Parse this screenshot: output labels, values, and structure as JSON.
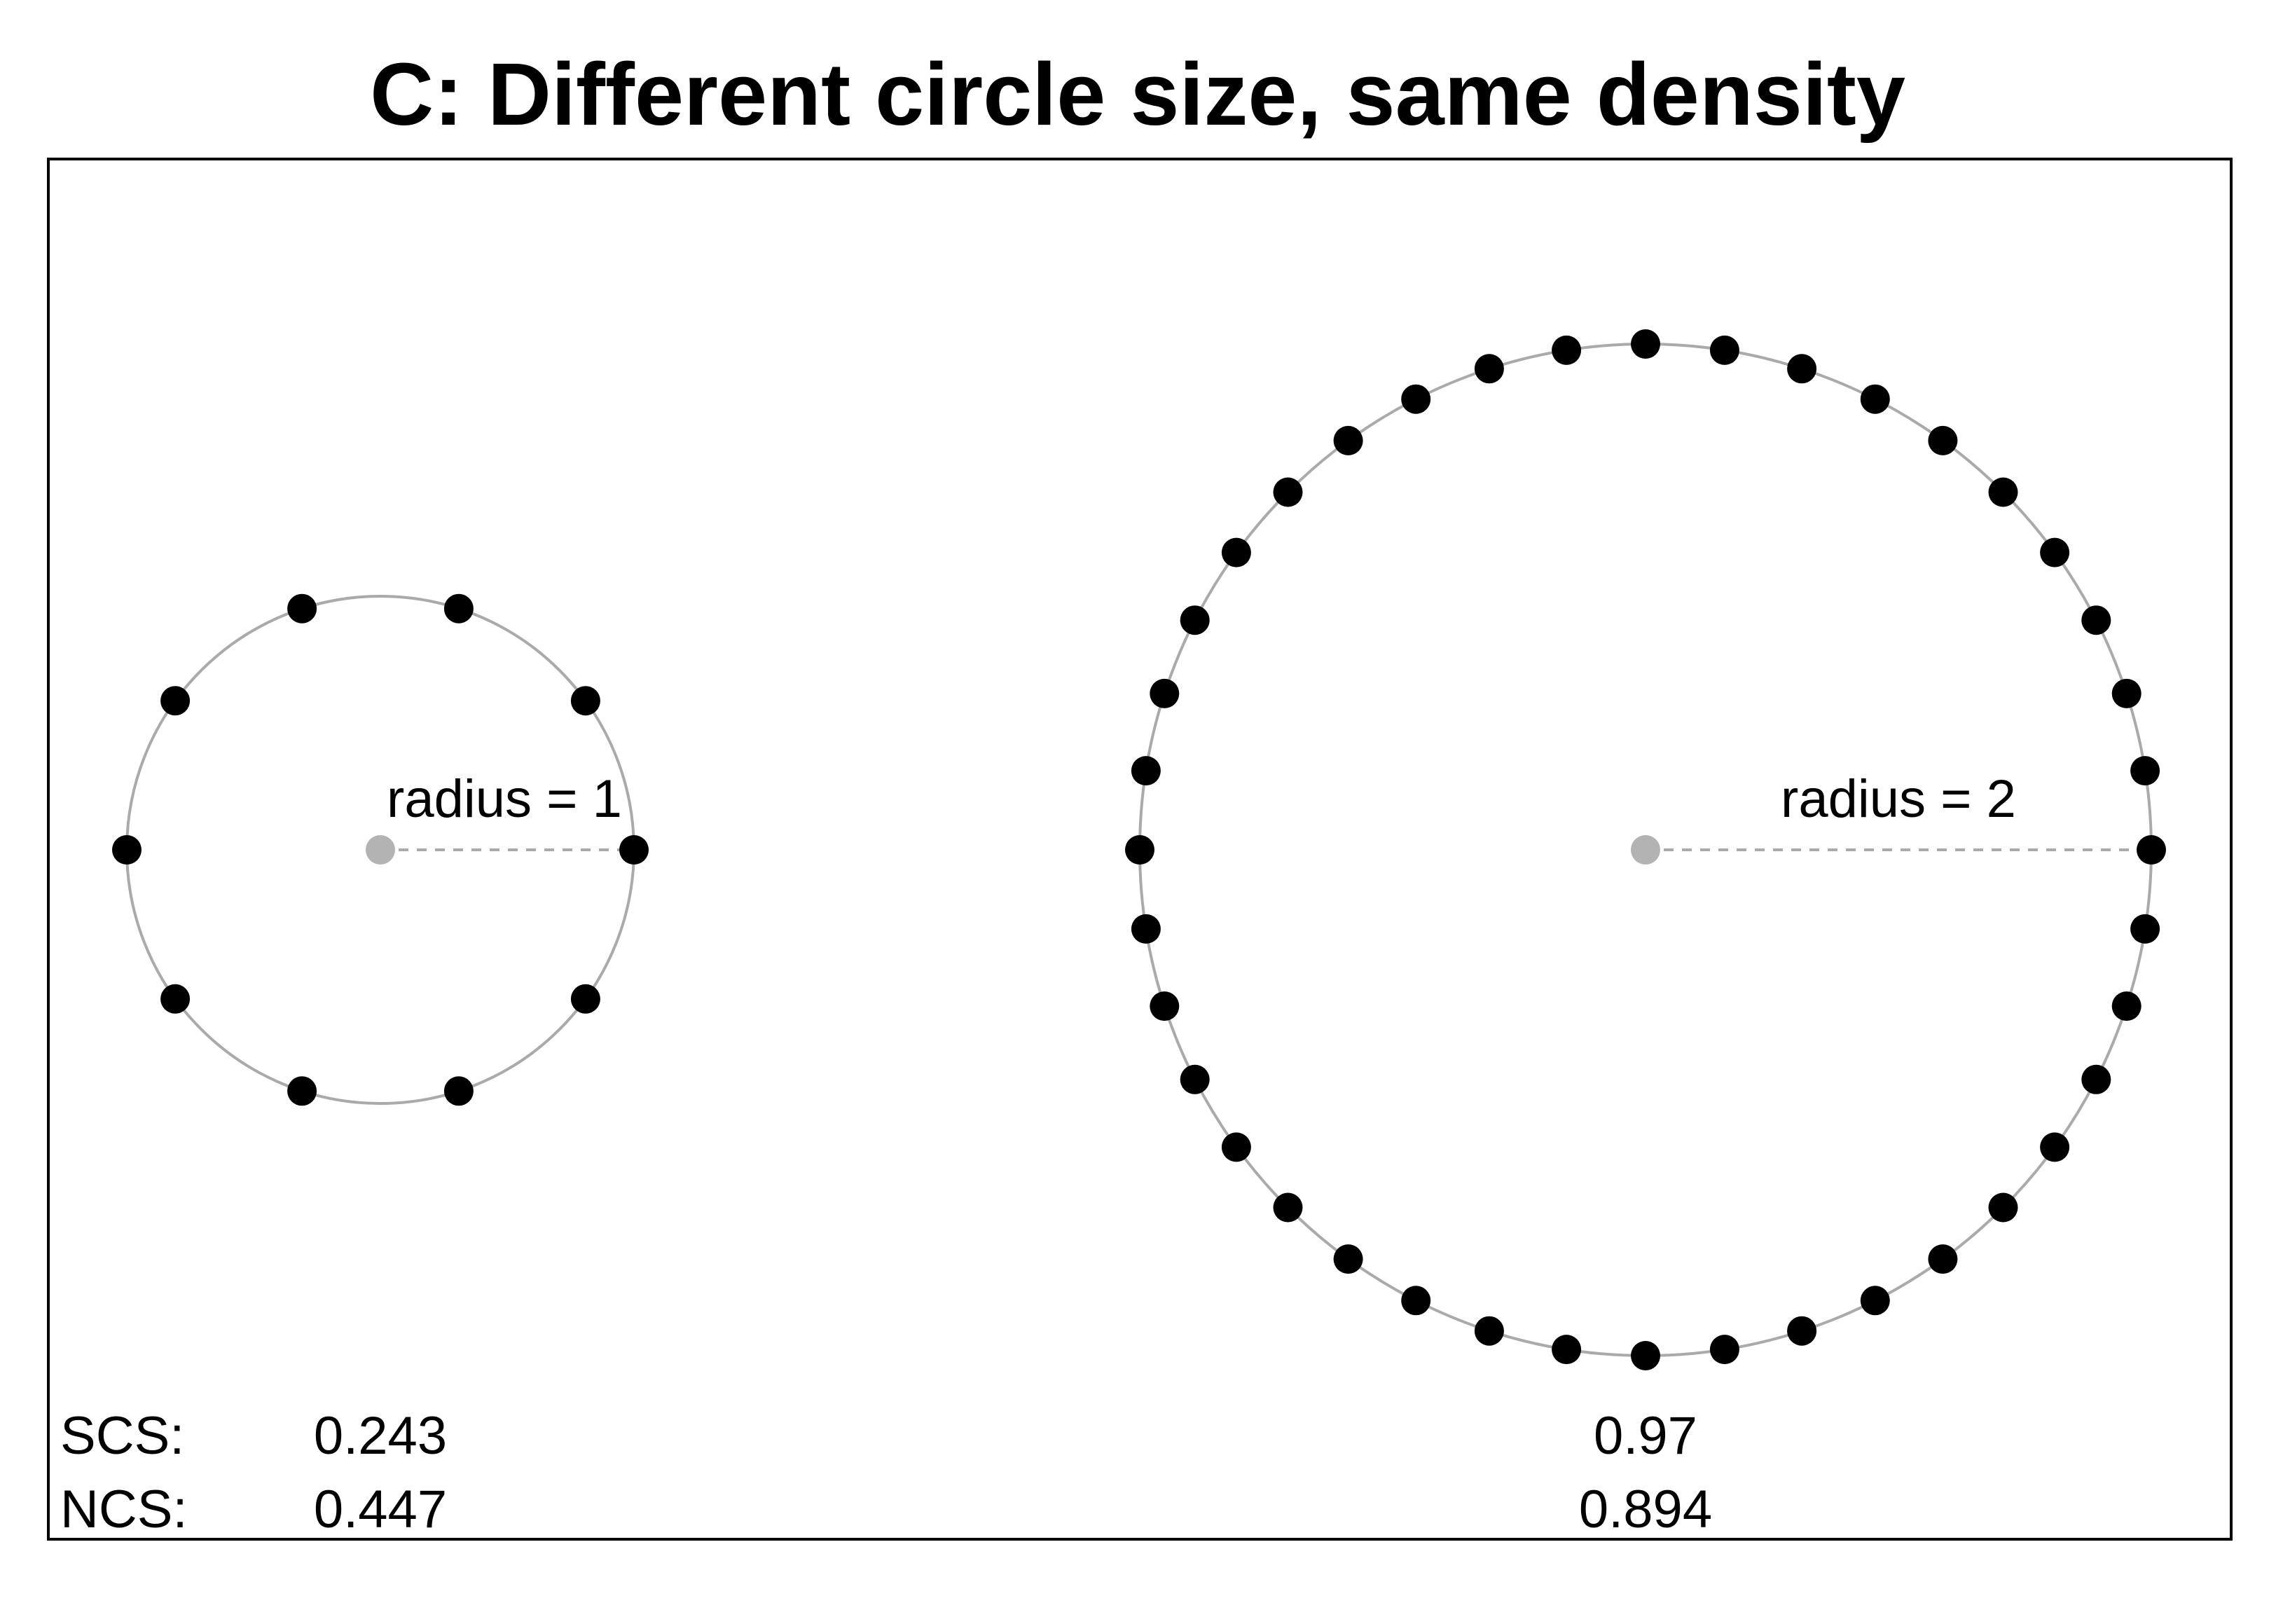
{
  "title": "C: Different circle size, same density",
  "colors": {
    "point": "#000000",
    "ring": "#aaaaaa",
    "center": "#b3b3b3",
    "radius_line": "#aaaaaa",
    "frame": "#000000"
  },
  "circles": [
    {
      "id": "small",
      "radius": 1,
      "radius_label": "radius = 1",
      "point_count": 10,
      "scs": "0.243",
      "ncs": "0.447"
    },
    {
      "id": "large",
      "radius": 2,
      "radius_label": "radius = 2",
      "point_count": 40,
      "scs": "0.97",
      "ncs": "0.894"
    }
  ],
  "metrics": {
    "scs_label": "SCS:",
    "ncs_label": "NCS:"
  }
}
